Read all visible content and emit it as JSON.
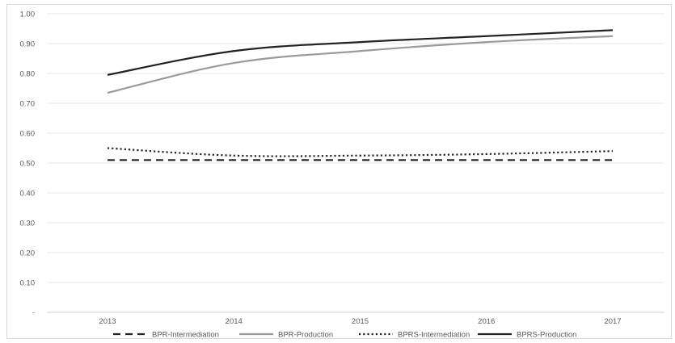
{
  "chart_data": {
    "type": "line",
    "title": "",
    "xlabel": "",
    "ylabel": "",
    "categories": [
      "2013",
      "2014",
      "2015",
      "2016",
      "2017"
    ],
    "ylim": [
      0,
      1.0
    ],
    "y_ticks": [
      {
        "value": 0.0,
        "label": "-"
      },
      {
        "value": 0.1,
        "label": "0.10"
      },
      {
        "value": 0.2,
        "label": "0.20"
      },
      {
        "value": 0.3,
        "label": "0.30"
      },
      {
        "value": 0.4,
        "label": "0.40"
      },
      {
        "value": 0.5,
        "label": "0.50"
      },
      {
        "value": 0.6,
        "label": "0.60"
      },
      {
        "value": 0.7,
        "label": "0.70"
      },
      {
        "value": 0.8,
        "label": "0.80"
      },
      {
        "value": 0.9,
        "label": "0.90"
      },
      {
        "value": 1.0,
        "label": "1.00"
      }
    ],
    "grid": true,
    "legend_position": "bottom",
    "series": [
      {
        "name": "BPR-Intermediation",
        "values": [
          0.51,
          0.51,
          0.51,
          0.51,
          0.51
        ],
        "color": "#222222",
        "style": "dashed"
      },
      {
        "name": "BPR-Production",
        "values": [
          0.735,
          0.835,
          0.875,
          0.905,
          0.925
        ],
        "color": "#9a9a9a",
        "style": "solid"
      },
      {
        "name": "BPRS-Intermediation",
        "values": [
          0.55,
          0.525,
          0.525,
          0.53,
          0.54
        ],
        "color": "#222222",
        "style": "dotted"
      },
      {
        "name": "BPRS-Production",
        "values": [
          0.795,
          0.875,
          0.905,
          0.925,
          0.945
        ],
        "color": "#222222",
        "style": "solid"
      }
    ]
  }
}
